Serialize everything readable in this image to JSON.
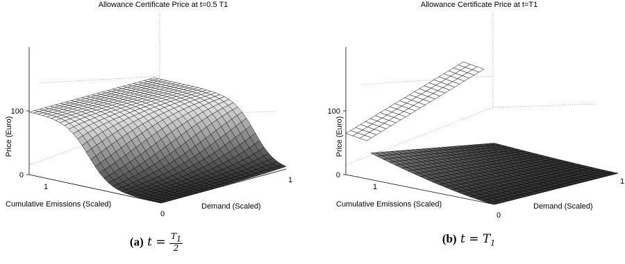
{
  "chart_data": [
    {
      "type": "surface",
      "panel": "a",
      "title": "Allowance Certificate Price at t=0.5 T1",
      "xlabel": "Cumulative Emissions (Scaled)",
      "ylabel": "Demand (Scaled)",
      "zlabel": "Price (Euro)",
      "x_ticks": [
        "1",
        "0"
      ],
      "y_ticks": [
        "0",
        "1"
      ],
      "z_ticks": [
        "0",
        "100"
      ],
      "zlim": [
        0,
        170
      ],
      "grid": "dotted box",
      "caption_label": "(a)",
      "caption_lhs": "t =",
      "caption_num": "T",
      "caption_num_sub": "1",
      "caption_den": "2",
      "surface_description": "smooth sigmoid in cumulative emissions: about 160 at x=1 falling to near 0 at x=0; price decreases with demand"
    },
    {
      "type": "surface",
      "panel": "b",
      "title": "Allowance Certificate Price at t=T1",
      "xlabel": "Cumulative Emissions (Scaled)",
      "ylabel": "Demand (Scaled)",
      "zlabel": "Price (Euro)",
      "x_ticks": [
        "1",
        "0"
      ],
      "y_ticks": [
        "0",
        "1"
      ],
      "z_ticks": [
        "0",
        "100"
      ],
      "zlim": [
        0,
        170
      ],
      "grid": "dotted box",
      "caption_label": "(b)",
      "caption_lhs": "t =",
      "caption_var": "T",
      "caption_sub": "1",
      "surface_description": "step function: penalty level above the cap (high plateau strip), near-zero below the cap"
    }
  ]
}
